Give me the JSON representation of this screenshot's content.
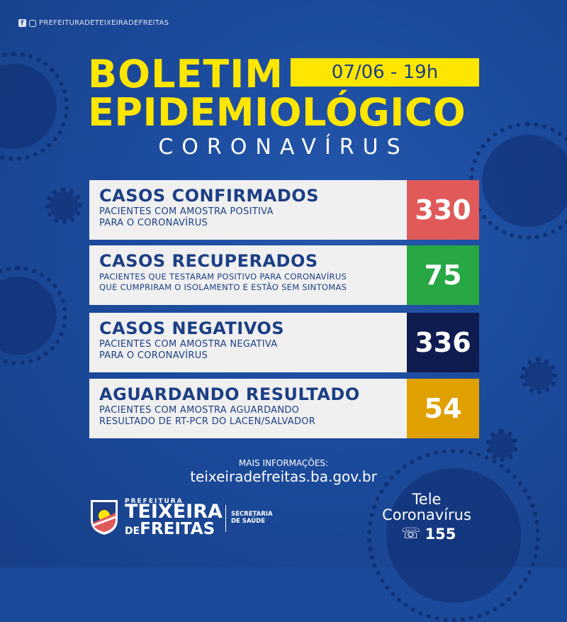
{
  "social": {
    "handle": "PREFEITURADETEIXEIRADEFREITAS",
    "icons": [
      "facebook-icon",
      "instagram-icon"
    ]
  },
  "header": {
    "title_line1": "BOLETIM",
    "date": "07/06 - 19h",
    "title_line2": "EPIDEMIOLÓGICO",
    "subtitle": "CORONAVÍRUS"
  },
  "cards": [
    {
      "title": "CASOS CONFIRMADOS",
      "desc1": "PACIENTES COM AMOSTRA POSITIVA",
      "desc2": "PARA O CORONAVÍRUS",
      "value": "330",
      "color": "#e05a5a"
    },
    {
      "title": "CASOS RECUPERADOS",
      "desc1": "PACIENTES QUE TESTARAM POSITIVO PARA CORONAVÍRUS",
      "desc2": "QUE CUMPRIRAM O ISOLAMENTO E ESTÃO SEM SINTOMAS",
      "value": "75",
      "color": "#28a745"
    },
    {
      "title": "CASOS NEGATIVOS",
      "desc1": "PACIENTES COM AMOSTRA NEGATIVA",
      "desc2": "PARA O CORONAVÍRUS",
      "value": "336",
      "color": "#0e1c50"
    },
    {
      "title": "AGUARDANDO RESULTADO",
      "desc1": "PACIENTES COM AMOSTRA AGUARDANDO",
      "desc2": "RESULTADO DE RT-PCR DO LACEN/SALVADOR",
      "value": "54",
      "color": "#e0a000"
    }
  ],
  "footer": {
    "more_label": "MAIS INFORMAÇÕES:",
    "website": "teixeiradefreitas.ba.gov.br",
    "pref_small": "PREFEITURA",
    "pref_line1": "TEIXEIRA",
    "pref_de": "DE",
    "pref_line2": "FREITAS",
    "secretaria1": "SECRETARIA",
    "secretaria2": "DE SAÚDE",
    "tele1": "Tele",
    "tele2": "Coronavírus",
    "phone": "155"
  },
  "colors": {
    "background": "#1b4a9a",
    "accent_yellow": "#ffe600",
    "card_bg": "#f0f0f0",
    "text_blue": "#1c3f85"
  }
}
